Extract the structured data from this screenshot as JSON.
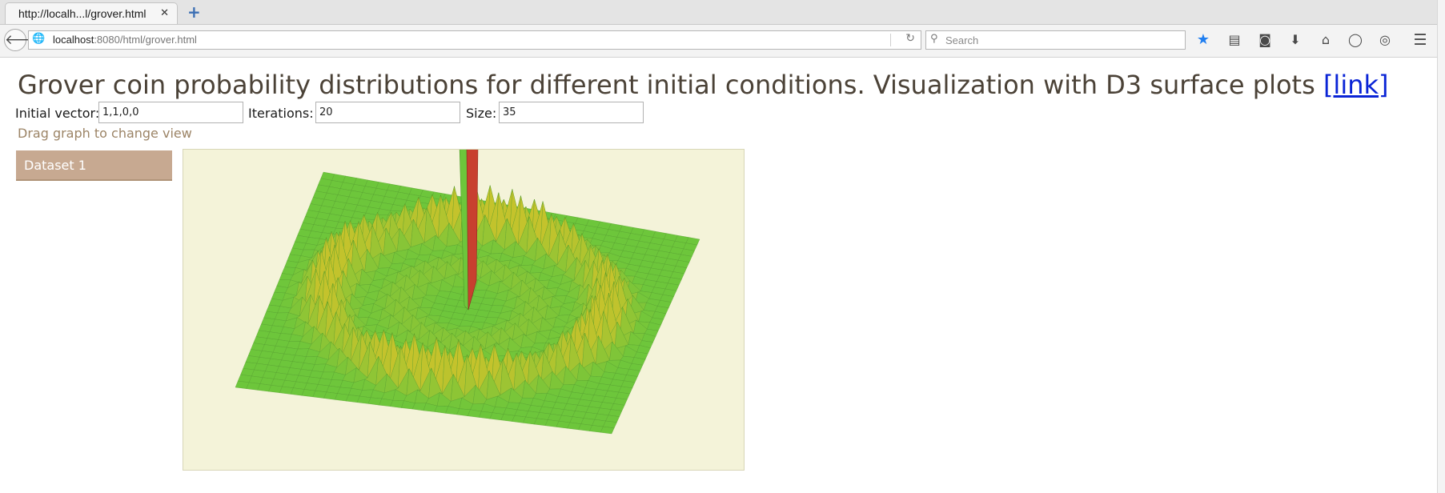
{
  "browser": {
    "tab_title": "http://localh...l/grover.html",
    "tab_close_glyph": "✕",
    "new_tab_glyph": "+",
    "url_host": "localhost",
    "url_rest": ":8080/html/grover.html",
    "search_placeholder": "Search",
    "icons": [
      "back-icon",
      "globe-icon",
      "reload-icon",
      "search-icon",
      "bookmark-star-icon",
      "reading-list-icon",
      "pocket-icon",
      "download-icon",
      "home-icon",
      "chat-icon",
      "screenshot-icon",
      "menu-icon"
    ],
    "accent_color": "#1f7ef0"
  },
  "page": {
    "title": "Grover coin probability distributions for different initial conditions. Visualization with D3 surface plots",
    "title_link": "[link]",
    "controls": {
      "initial_vector_label": "Initial vector:",
      "initial_vector_value": "1,1,0,0",
      "iterations_label": "Iterations:",
      "iterations_value": "20",
      "size_label": "Size:",
      "size_value": "35"
    },
    "drag_hint": "Drag graph to change view",
    "datasets": [
      "Dataset 1"
    ]
  },
  "colors": {
    "surface_green": "#6dc63b",
    "peak_yellow": "#c4c32c",
    "peak_red": "#c8402f",
    "panel_bg": "#f4f3d9",
    "dataset_bg": "#c7a991",
    "title_color": "#4b4237",
    "link_color": "#0a24d6"
  }
}
